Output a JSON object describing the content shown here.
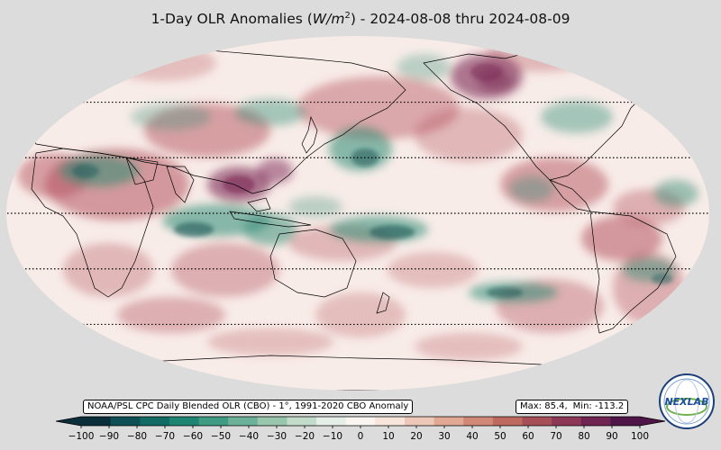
{
  "title": {
    "prefix": "1-Day OLR Anomalies (",
    "unit_var": "W/m",
    "unit_exp": "2",
    "suffix": ") - 2024-08-08 thru 2024-08-09"
  },
  "source_note": "NOAA/PSL CPC Daily Blended OLR (CBO) - 1°, 1991-2020 CBO Anomaly",
  "stats": {
    "max_label": "Max: 85.4,",
    "min_label": "Min: -113.2"
  },
  "colorbar": {
    "ticks": [
      "−100",
      "−90",
      "−80",
      "−70",
      "−60",
      "−50",
      "−40",
      "−30",
      "−20",
      "−10",
      "0",
      "10",
      "20",
      "30",
      "40",
      "50",
      "60",
      "70",
      "80",
      "90",
      "100"
    ],
    "range": [
      -100,
      100
    ],
    "colors": [
      "#0a2f3a",
      "#0e4f55",
      "#116a64",
      "#1d8572",
      "#3f9b84",
      "#6db198",
      "#98c7ae",
      "#c3dcca",
      "#e6efe7",
      "#fbf5f2",
      "#f7e5dc",
      "#edc8b8",
      "#e1a894",
      "#d28876",
      "#be6a60",
      "#a64f57",
      "#8c3856",
      "#6f2452",
      "#4f1548"
    ]
  },
  "map": {
    "projection": "robinson-pacific-centered",
    "lat_lines": [
      60,
      30,
      0,
      -30,
      -60
    ],
    "anomaly_colors": {
      "positive": "#b5525e",
      "strong_positive": "#7a2652",
      "negative": "#2b8a72",
      "strong_negative": "#0d4f4f"
    }
  },
  "logo": {
    "text": "NEXLAB",
    "ring_text": "COLLEGE OF DUPAGE"
  }
}
